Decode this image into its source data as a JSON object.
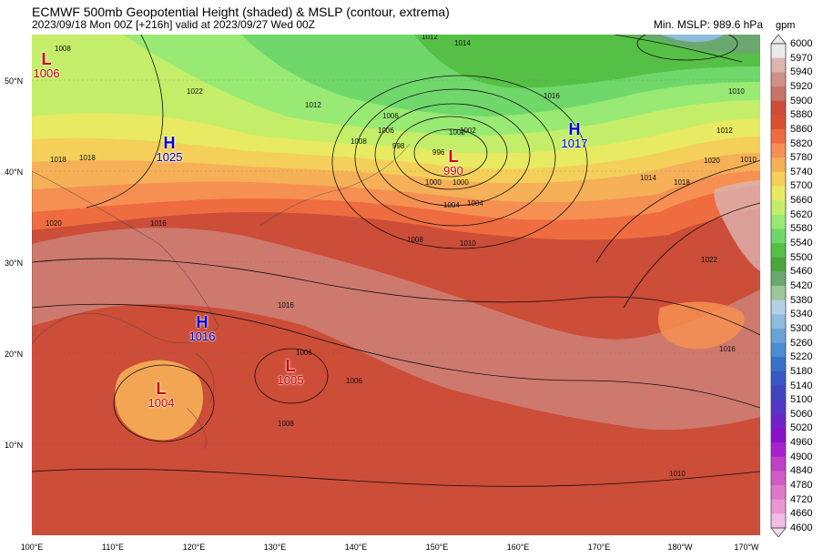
{
  "title": "ECMWF 500mb Geopotential Height (shaded) & MSLP (contour, extrema)",
  "subtitle": "2023/09/18 Mon 00Z [+216h] valid at 2023/09/27 Wed 00Z",
  "min_mslp": "Min. MSLP: 989.6 hPa",
  "colorbar": {
    "unit": "gpm",
    "levels": [
      "6000",
      "5970",
      "5940",
      "5920",
      "5900",
      "5880",
      "5860",
      "5820",
      "5780",
      "5740",
      "5700",
      "5660",
      "5620",
      "5580",
      "5540",
      "5500",
      "5460",
      "5420",
      "5380",
      "5340",
      "5300",
      "5260",
      "5220",
      "5180",
      "5140",
      "5100",
      "5060",
      "5020",
      "4960",
      "4900",
      "4840",
      "4780",
      "4720",
      "4660",
      "4600"
    ],
    "colors": [
      "#eaeaea",
      "#dcb4b0",
      "#d0908a",
      "#c87468",
      "#cc4d38",
      "#dc4e32",
      "#ee6c40",
      "#f69052",
      "#f6b058",
      "#f4d05a",
      "#e8ea62",
      "#c4ee6a",
      "#98ea74",
      "#70d86a",
      "#56c046",
      "#4ca640",
      "#6aa870",
      "#9ac898",
      "#b4d0e6",
      "#8ebcdc",
      "#6aa4d6",
      "#4a8ed2",
      "#3872c8",
      "#3856c4",
      "#4044c0",
      "#5236c4",
      "#6c24c8",
      "#8a10cc",
      "#a820cc",
      "#c040c8",
      "#d25ac4",
      "#e078c8",
      "#ea98d4",
      "#f2bce4",
      "#f8dcf2"
    ]
  },
  "lat_labels": [
    "50°N",
    "40°N",
    "30°N",
    "20°N",
    "10°N"
  ],
  "lon_labels": [
    "100°E",
    "110°E",
    "120°E",
    "130°E",
    "140°E",
    "150°E",
    "160°E",
    "170°E",
    "180°W",
    "170°W"
  ],
  "pressure_systems": [
    {
      "type": "L",
      "value": "1006"
    },
    {
      "type": "H",
      "value": "1025"
    },
    {
      "type": "L",
      "value": "990"
    },
    {
      "type": "H",
      "value": "1017"
    },
    {
      "type": "H",
      "value": "1016"
    },
    {
      "type": "L",
      "value": "1004"
    },
    {
      "type": "L",
      "value": "1005"
    }
  ],
  "contour_labels": [
    "1012",
    "1014",
    "1002",
    "1000",
    "1006",
    "1004",
    "1010",
    "1016",
    "1008",
    "1010",
    "1022",
    "1016",
    "1018",
    "1020",
    "1022",
    "1014",
    "1018",
    "1012",
    "1008",
    "998",
    "996",
    "1000",
    "1002",
    "1004",
    "1006",
    "1008",
    "1010",
    "1016",
    "1006",
    "1006",
    "1010",
    "1020",
    "1018",
    "1016",
    "1012",
    "1008"
  ]
}
